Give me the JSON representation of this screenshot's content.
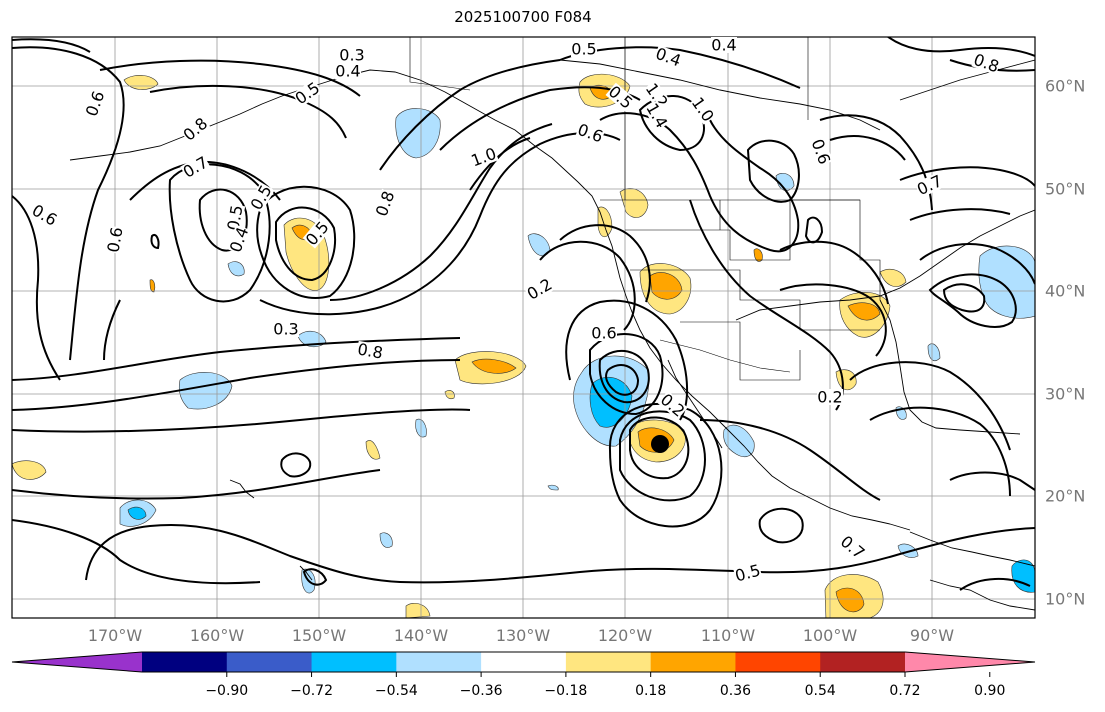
{
  "title": "2025100700 F084",
  "map": {
    "lon_labels": [
      "170°W",
      "160°W",
      "150°W",
      "140°W",
      "130°W",
      "120°W",
      "110°W",
      "100°W",
      "90°W"
    ],
    "lat_labels": [
      "60°N",
      "50°N",
      "40°N",
      "30°N",
      "20°N",
      "10°N"
    ],
    "contour_labels": [
      "0.3",
      "0.4",
      "0.5",
      "0.6",
      "0.8",
      "0.5",
      "0.4",
      "0.4",
      "0.6",
      "0.5",
      "1.0",
      "1.2",
      "1.4",
      "0.8",
      "1.0",
      "0.6",
      "0.7",
      "0.8",
      "0.6",
      "0.6",
      "0.7",
      "0.5",
      "0.5",
      "0.4",
      "0.5",
      "0.2",
      "0.6",
      "0.3",
      "0.8",
      "0.2",
      "0.2",
      "0.5",
      "0.7"
    ]
  },
  "colorbar": {
    "colors": [
      "#9932CC",
      "#000080",
      "#3A5CC9",
      "#00BFFF",
      "#B0E0FF",
      "#FFFFFF",
      "#FFE680",
      "#FFA500",
      "#FF4500",
      "#B22222",
      "#FF88AA"
    ],
    "tick_labels": [
      "−0.90",
      "−0.72",
      "−0.54",
      "−0.36",
      "−0.18",
      "0.18",
      "0.36",
      "0.54",
      "0.72",
      "0.90"
    ]
  }
}
